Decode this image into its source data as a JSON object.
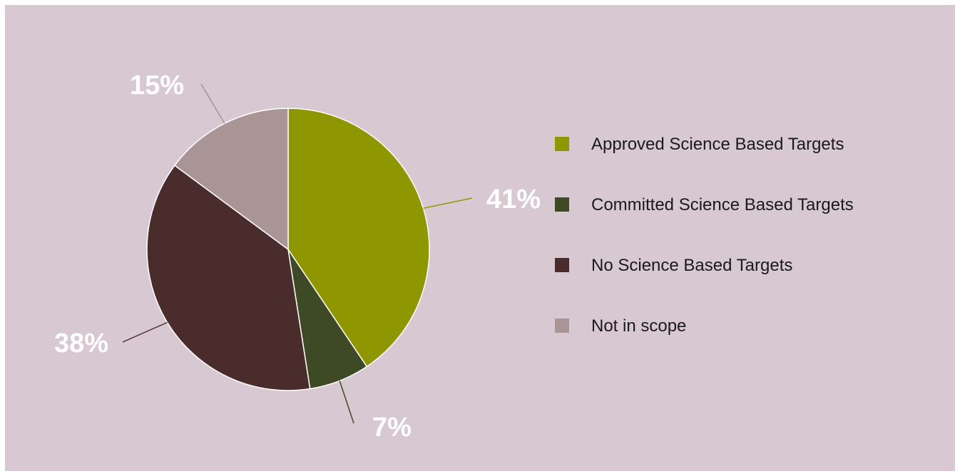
{
  "chart_data": {
    "type": "pie",
    "title": "",
    "categories": [
      "Approved Science Based Targets",
      "Committed Science Based Targets",
      "No Science Based Targets",
      "Not in scope"
    ],
    "values": [
      41,
      7,
      38,
      15
    ],
    "labels": [
      "41%",
      "7%",
      "38%",
      "15%"
    ],
    "colors": [
      "#8f9700",
      "#3d4a25",
      "#4b2c2d",
      "#a99596"
    ],
    "start_angle_deg": 0,
    "direction": "clockwise",
    "legend_position": "right"
  }
}
